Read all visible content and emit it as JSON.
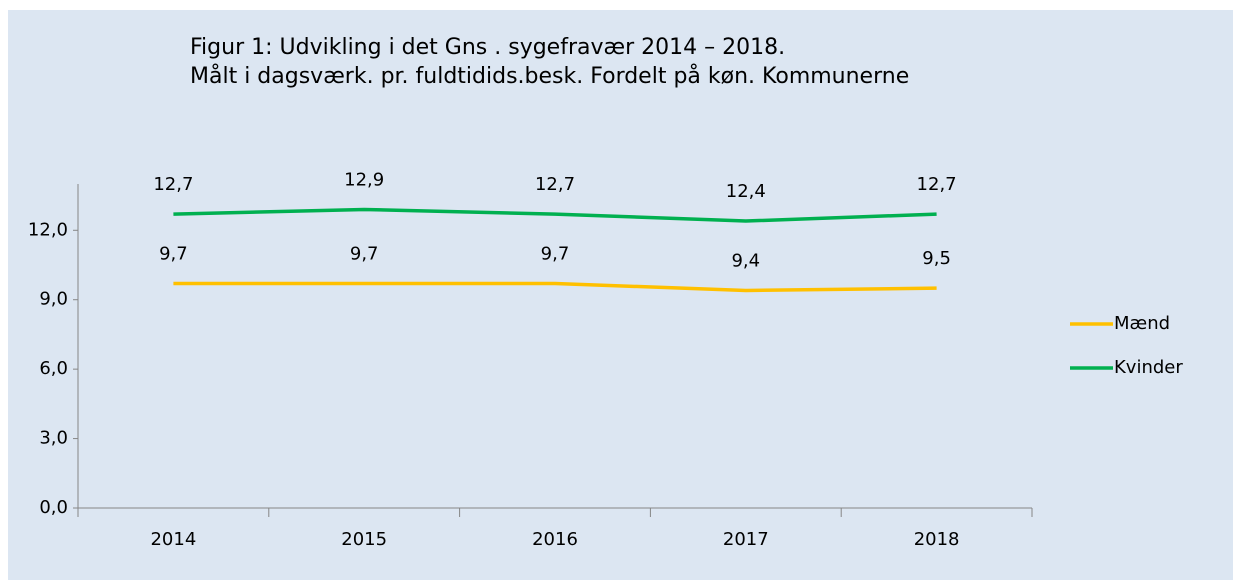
{
  "chart_data": {
    "type": "line",
    "title": "Figur 1: Udvikling i det Gns . sygefravær 2014 – 2018.",
    "subtitle": "Målt i dagsværk. pr. fuldtidids.besk. Fordelt på køn. Kommunerne",
    "categories": [
      "2014",
      "2015",
      "2016",
      "2017",
      "2018"
    ],
    "series": [
      {
        "name": "Mænd",
        "color": "#ffc000",
        "values": [
          9.7,
          9.7,
          9.7,
          9.4,
          9.5
        ],
        "value_labels": [
          "9,7",
          "9,7",
          "9,7",
          "9,4",
          "9,5"
        ]
      },
      {
        "name": "Kvinder",
        "color": "#00b050",
        "values": [
          12.7,
          12.9,
          12.7,
          12.4,
          12.7
        ],
        "value_labels": [
          "12,7",
          "12,9",
          "12,7",
          "12,4",
          "12,7"
        ]
      }
    ],
    "ylim": [
      0,
      14
    ],
    "yticks": [
      {
        "value": 0,
        "label": "0,0"
      },
      {
        "value": 3,
        "label": "3,0"
      },
      {
        "value": 6,
        "label": "6,0"
      },
      {
        "value": 9,
        "label": "9,0"
      },
      {
        "value": 12,
        "label": "12,0"
      }
    ],
    "legend": "right"
  }
}
